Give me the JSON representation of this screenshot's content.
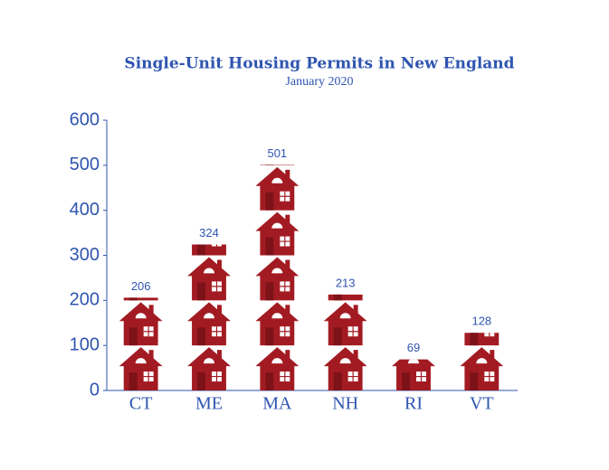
{
  "chart_data": {
    "type": "pictograph",
    "title": "Single-Unit Housing Permits in New England",
    "subtitle": "January 2020",
    "categories": [
      "CT",
      "ME",
      "MA",
      "NH",
      "RI",
      "VT"
    ],
    "values": [
      206,
      324,
      501,
      213,
      69,
      128
    ],
    "color": "#a31b22",
    "ylim": [
      0,
      600
    ],
    "yticks": [
      0,
      100,
      200,
      300,
      400,
      500,
      600
    ]
  }
}
